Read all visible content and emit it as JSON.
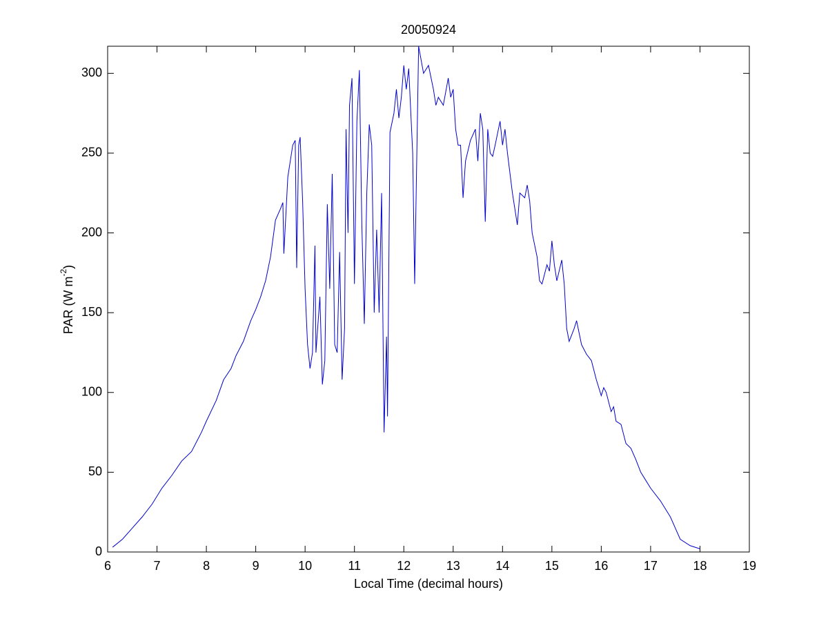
{
  "chart_data": {
    "type": "line",
    "title": "20050924",
    "xlabel": "Local Time (decimal hours)",
    "ylabel": [
      "PAR (W m",
      "-2",
      ")"
    ],
    "xlim": [
      6,
      19
    ],
    "xticks": [
      6,
      7,
      8,
      9,
      10,
      11,
      12,
      13,
      14,
      15,
      16,
      17,
      18,
      19
    ],
    "ylim": [
      0,
      317
    ],
    "yticks": [
      0,
      50,
      100,
      150,
      200,
      250,
      300
    ],
    "series": [
      {
        "color": "#0000cc",
        "x": [
          6.1,
          6.3,
          6.5,
          6.7,
          6.9,
          7.1,
          7.3,
          7.5,
          7.7,
          7.9,
          8.0,
          8.2,
          8.35,
          8.5,
          8.6,
          8.75,
          8.9,
          9.0,
          9.1,
          9.2,
          9.3,
          9.4,
          9.5,
          9.55,
          9.57,
          9.65,
          9.75,
          9.8,
          9.83,
          9.87,
          9.9,
          9.95,
          10.0,
          10.05,
          10.1,
          10.15,
          10.2,
          10.22,
          10.3,
          10.35,
          10.4,
          10.45,
          10.5,
          10.55,
          10.6,
          10.65,
          10.7,
          10.75,
          10.8,
          10.83,
          10.87,
          10.9,
          10.95,
          11.0,
          11.05,
          11.1,
          11.15,
          11.2,
          11.25,
          11.3,
          11.35,
          11.4,
          11.45,
          11.5,
          11.55,
          11.6,
          11.65,
          11.67,
          11.72,
          11.8,
          11.85,
          11.9,
          11.95,
          12.0,
          12.05,
          12.1,
          12.18,
          12.22,
          12.3,
          12.4,
          12.5,
          12.6,
          12.65,
          12.7,
          12.8,
          12.9,
          12.95,
          13.0,
          13.05,
          13.1,
          13.15,
          13.2,
          13.25,
          13.35,
          13.45,
          13.5,
          13.55,
          13.6,
          13.65,
          13.7,
          13.75,
          13.8,
          13.85,
          13.95,
          14.0,
          14.05,
          14.1,
          14.2,
          14.3,
          14.35,
          14.45,
          14.5,
          14.55,
          14.6,
          14.7,
          14.75,
          14.8,
          14.9,
          14.95,
          15.0,
          15.05,
          15.1,
          15.2,
          15.25,
          15.3,
          15.35,
          15.45,
          15.5,
          15.6,
          15.7,
          15.8,
          15.9,
          16.0,
          16.05,
          16.1,
          16.2,
          16.25,
          16.3,
          16.4,
          16.5,
          16.6,
          16.7,
          16.8,
          16.9,
          17.0,
          17.2,
          17.4,
          17.5,
          17.6,
          17.8,
          18.0
        ],
        "values": [
          3,
          8,
          15,
          22,
          30,
          40,
          48,
          57,
          63,
          75,
          82,
          95,
          108,
          115,
          123,
          132,
          145,
          152,
          160,
          170,
          185,
          208,
          215,
          219,
          187,
          235,
          255,
          258,
          178,
          255,
          260,
          220,
          165,
          130,
          115,
          125,
          192,
          125,
          160,
          105,
          120,
          218,
          165,
          237,
          130,
          125,
          188,
          108,
          140,
          265,
          200,
          280,
          297,
          168,
          270,
          302,
          205,
          143,
          225,
          268,
          255,
          150,
          202,
          150,
          225,
          75,
          135,
          85,
          263,
          275,
          290,
          272,
          285,
          305,
          290,
          303,
          250,
          168,
          317,
          300,
          305,
          290,
          280,
          285,
          280,
          297,
          285,
          290,
          265,
          255,
          255,
          222,
          245,
          258,
          265,
          245,
          275,
          265,
          207,
          265,
          250,
          248,
          255,
          270,
          255,
          265,
          250,
          225,
          205,
          225,
          222,
          230,
          220,
          200,
          185,
          170,
          168,
          180,
          176,
          195,
          180,
          170,
          183,
          168,
          140,
          132,
          140,
          145,
          130,
          124,
          120,
          108,
          98,
          103,
          100,
          88,
          91,
          82,
          80,
          68,
          65,
          58,
          50,
          45,
          40,
          32,
          22,
          15,
          8,
          4,
          2
        ]
      }
    ]
  }
}
